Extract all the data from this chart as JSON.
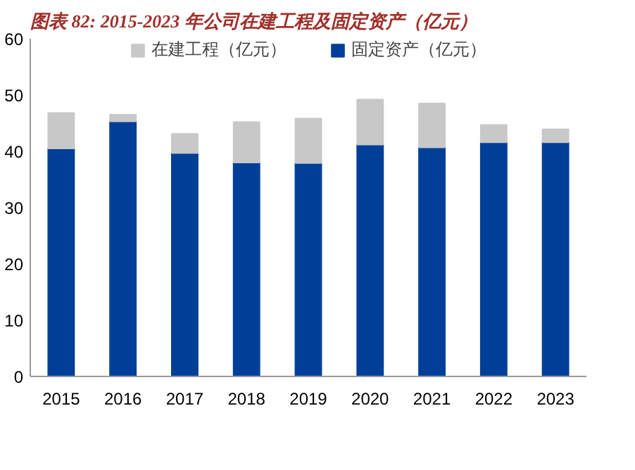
{
  "chart_data": {
    "type": "bar",
    "title": "图表 82:  2015-2023 年公司在建工程及固定资产（亿元）",
    "categories": [
      "2015",
      "2016",
      "2017",
      "2018",
      "2019",
      "2020",
      "2021",
      "2022",
      "2023"
    ],
    "stacked": true,
    "series": [
      {
        "name": "固定资产（亿元）",
        "color": "#003f98",
        "values": [
          40.5,
          45.3,
          39.7,
          38.0,
          37.9,
          41.2,
          40.7,
          41.6,
          41.6
        ]
      },
      {
        "name": "在建工程（亿元）",
        "color": "#c8c8c8",
        "values": [
          6.3,
          1.2,
          3.4,
          7.2,
          7.9,
          8.0,
          7.8,
          3.1,
          2.3
        ]
      }
    ],
    "ylim": [
      0,
      60
    ],
    "yticks": [
      0,
      10,
      20,
      30,
      40,
      50,
      60
    ],
    "grid": false,
    "legend": "top"
  }
}
